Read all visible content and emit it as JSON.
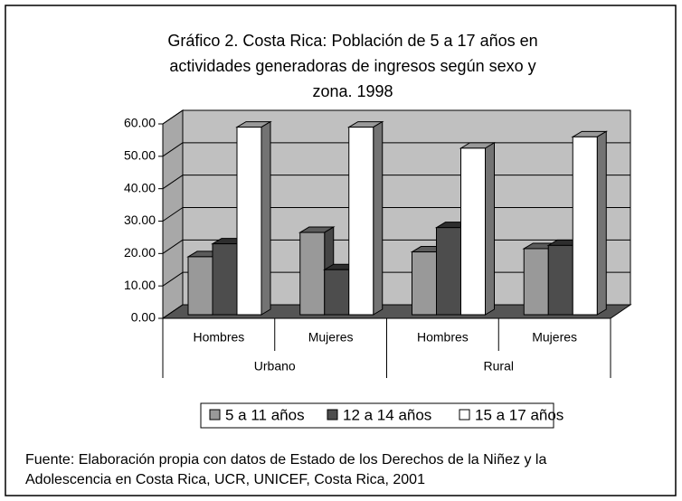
{
  "chart_data": {
    "type": "bar3d",
    "title": [
      "Gráfico 2.  Costa Rica:  Población de 5 a 17 años en",
      "actividades generadoras de ingresos según sexo y",
      "zona. 1998"
    ],
    "categories": [
      "Hombres",
      "Mujeres",
      "Hombres",
      "Mujeres"
    ],
    "groups": [
      {
        "label": "Urbano",
        "span": 2
      },
      {
        "label": "Rural",
        "span": 2
      }
    ],
    "series": [
      {
        "name": "5 a 11 años",
        "color": "#999999",
        "values": [
          19,
          26.5,
          20.5,
          21.5
        ]
      },
      {
        "name": "12 a 14 años",
        "color": "#4d4d4d",
        "values": [
          23,
          15,
          28,
          22.5
        ]
      },
      {
        "name": "15 a 17 años",
        "color": "#ffffff",
        "values": [
          59,
          59,
          52.5,
          56
        ]
      }
    ],
    "ylim": [
      0,
      60
    ],
    "yticks": [
      {
        "value": 0,
        "label": "0.00"
      },
      {
        "value": 10,
        "label": "10.00"
      },
      {
        "value": 20,
        "label": "20.00"
      },
      {
        "value": 30,
        "label": "30.00"
      },
      {
        "value": 40,
        "label": "40.00"
      },
      {
        "value": 50,
        "label": "50.00"
      },
      {
        "value": 60,
        "label": "60.00"
      }
    ],
    "grid": true,
    "legend": "bottom",
    "source": [
      "Fuente:  Elaboración propia con datos de Estado de los Derechos de la Niñez y la",
      "Adolescencia en Costa Rica, UCR, UNICEF, Costa Rica, 2001"
    ]
  }
}
